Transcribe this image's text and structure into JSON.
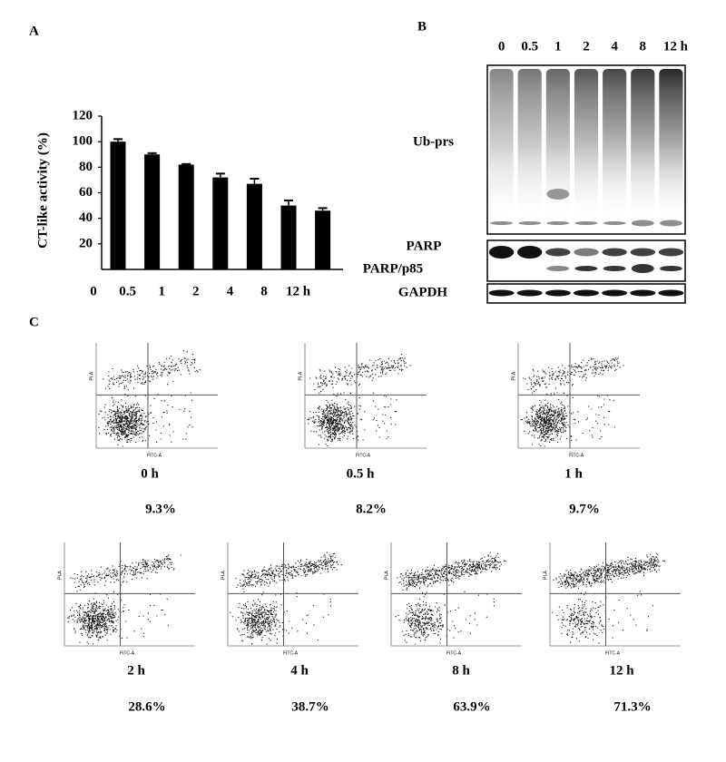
{
  "chart_data": {
    "type": "bar",
    "panel": "A",
    "y_label": "CT-like activity (%)",
    "categories": [
      "0",
      "0.5",
      "1",
      "2",
      "4",
      "8",
      "12 h"
    ],
    "values": [
      100,
      90,
      82,
      72,
      67,
      50,
      46
    ],
    "errors": [
      2,
      1,
      0.5,
      3,
      4,
      4,
      2
    ],
    "color": "#000000",
    "ylim": [
      0,
      120
    ],
    "yticks": [
      20,
      40,
      60,
      80,
      100,
      120
    ],
    "grid": false
  },
  "blot": {
    "panel": "B",
    "lanes": [
      "0",
      "0.5",
      "1",
      "2",
      "4",
      "8",
      "12 h"
    ],
    "rows": [
      "Ub-prs",
      "PARP",
      "PARP/p85",
      "GAPDH"
    ]
  },
  "flow": {
    "panel": "C",
    "x_axis": "FITC-A",
    "y_axis": "PI-A",
    "plots": [
      {
        "time": "0 h",
        "percent": "9.3%"
      },
      {
        "time": "0.5 h",
        "percent": "8.2%"
      },
      {
        "time": "1 h",
        "percent": "9.7%"
      },
      {
        "time": "2 h",
        "percent": "28.6%"
      },
      {
        "time": "4 h",
        "percent": "38.7%"
      },
      {
        "time": "8 h",
        "percent": "63.9%"
      },
      {
        "time": "12 h",
        "percent": "71.3%"
      }
    ]
  }
}
